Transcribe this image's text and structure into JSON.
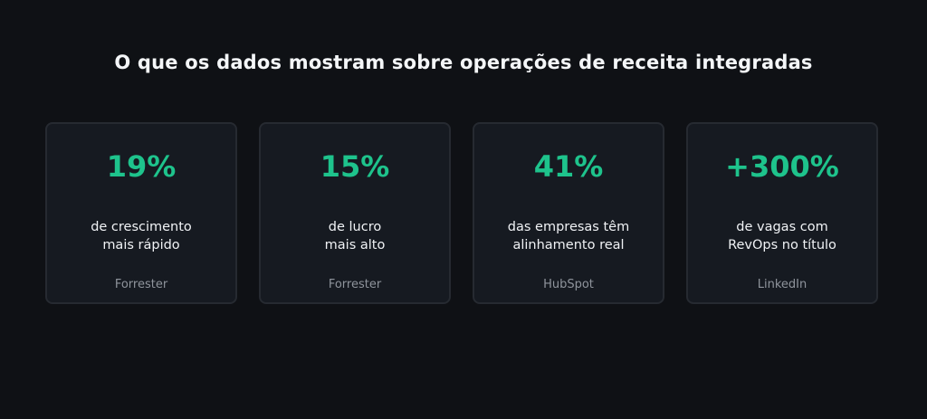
{
  "title": "O que os dados mostram sobre operações de receita integradas",
  "colors": {
    "background": "#0f1115",
    "card": "#161a21",
    "accent": "#1ec38c",
    "muted": "#8f949c"
  },
  "cards": [
    {
      "stat": "19%",
      "line1": "de crescimento",
      "line2": "mais rápido",
      "source": "Forrester"
    },
    {
      "stat": "15%",
      "line1": "de lucro",
      "line2": "mais alto",
      "source": "Forrester"
    },
    {
      "stat": "41%",
      "line1": "das empresas têm",
      "line2": "alinhamento real",
      "source": "HubSpot"
    },
    {
      "stat": "+300%",
      "line1": "de vagas com",
      "line2": "RevOps no título",
      "source": "LinkedIn"
    }
  ]
}
